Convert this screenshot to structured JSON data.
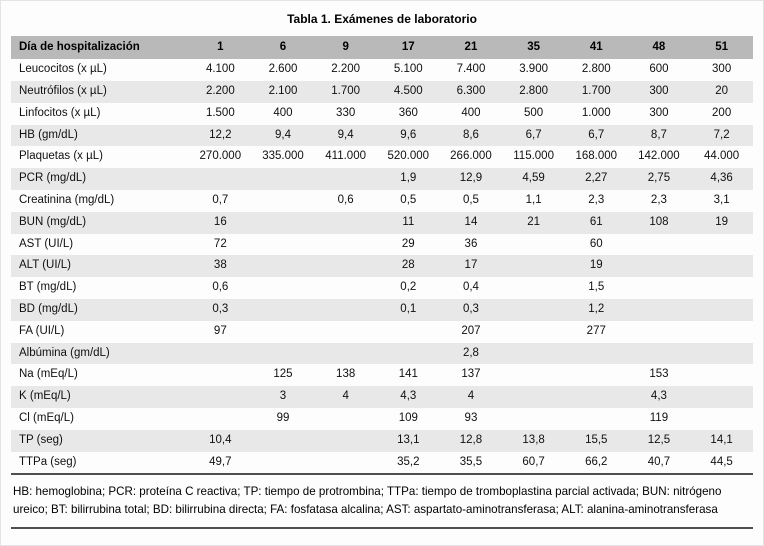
{
  "title": "Tabla 1. Exámenes de laboratorio",
  "table": {
    "header": [
      "Día de hospitalización",
      "1",
      "6",
      "9",
      "17",
      "21",
      "35",
      "41",
      "48",
      "51"
    ],
    "rows": [
      {
        "label": "Leucocitos (x µL)",
        "values": [
          "4.100",
          "2.600",
          "2.200",
          "5.100",
          "7.400",
          "3.900",
          "2.800",
          "600",
          "300"
        ]
      },
      {
        "label": "Neutrófilos (x µL)",
        "values": [
          "2.200",
          "2.100",
          "1.700",
          "4.500",
          "6.300",
          "2.800",
          "1.700",
          "300",
          "20"
        ]
      },
      {
        "label": "Linfocitos (x µL)",
        "values": [
          "1.500",
          "400",
          "330",
          "360",
          "400",
          "500",
          "1.000",
          "300",
          "200"
        ]
      },
      {
        "label": "HB (gm/dL)",
        "values": [
          "12,2",
          "9,4",
          "9,4",
          "9,6",
          "8,6",
          "6,7",
          "6,7",
          "8,7",
          "7,2"
        ]
      },
      {
        "label": "Plaquetas (x µL)",
        "values": [
          "270.000",
          "335.000",
          "411.000",
          "520.000",
          "266.000",
          "115.000",
          "168.000",
          "142.000",
          "44.000"
        ]
      },
      {
        "label": "PCR (mg/dL)",
        "values": [
          "",
          "",
          "",
          "1,9",
          "12,9",
          "4,59",
          "2,27",
          "2,75",
          "4,36"
        ]
      },
      {
        "label": "Creatinina (mg/dL)",
        "values": [
          "0,7",
          "",
          "0,6",
          "0,5",
          "0,5",
          "1,1",
          "2,3",
          "2,3",
          "3,1"
        ]
      },
      {
        "label": "BUN (mg/dL)",
        "values": [
          "16",
          "",
          "",
          "11",
          "14",
          "21",
          "61",
          "108",
          "19"
        ]
      },
      {
        "label": "AST (UI/L)",
        "values": [
          "72",
          "",
          "",
          "29",
          "36",
          "",
          "60",
          "",
          ""
        ]
      },
      {
        "label": "ALT (UI/L)",
        "values": [
          "38",
          "",
          "",
          "28",
          "17",
          "",
          "19",
          "",
          ""
        ]
      },
      {
        "label": "BT (mg/dL)",
        "values": [
          "0,6",
          "",
          "",
          "0,2",
          "0,4",
          "",
          "1,5",
          "",
          ""
        ]
      },
      {
        "label": "BD (mg/dL)",
        "values": [
          "0,3",
          "",
          "",
          "0,1",
          "0,3",
          "",
          "1,2",
          "",
          ""
        ]
      },
      {
        "label": "FA (UI/L)",
        "values": [
          "97",
          "",
          "",
          "",
          "207",
          "",
          "277",
          "",
          ""
        ]
      },
      {
        "label": "Albúmina (gm/dL)",
        "values": [
          "",
          "",
          "",
          "",
          "2,8",
          "",
          "",
          "",
          ""
        ]
      },
      {
        "label": "Na (mEq/L)",
        "values": [
          "",
          "125",
          "138",
          "141",
          "137",
          "",
          "",
          "153",
          ""
        ]
      },
      {
        "label": "K (mEq/L)",
        "values": [
          "",
          "3",
          "4",
          "4,3",
          "4",
          "",
          "",
          "4,3",
          ""
        ]
      },
      {
        "label": "Cl (mEq/L)",
        "values": [
          "",
          "99",
          "",
          "109",
          "93",
          "",
          "",
          "119",
          ""
        ]
      },
      {
        "label": "TP (seg)",
        "values": [
          "10,4",
          "",
          "",
          "13,1",
          "12,8",
          "13,8",
          "15,5",
          "12,5",
          "14,1"
        ]
      },
      {
        "label": "TTPa (seg)",
        "values": [
          "49,7",
          "",
          "",
          "35,2",
          "35,5",
          "60,7",
          "66,2",
          "40,7",
          "44,5"
        ]
      }
    ]
  },
  "footnote": "HB: hemoglobina; PCR: proteína C reactiva; TP: tiempo de protrombina; TTPa: tiempo de tromboplastina parcial activada; BUN: nitrógeno ureico; BT: bilirrubina total; BD: bilirrubina directa; FA: fosfatasa alcalina; AST: aspartato-aminotransferasa; ALT: alanina-aminotransferasa",
  "colors": {
    "header_bg": "#b9b9b9",
    "row_shaded_bg": "#e8e8e8",
    "rule": "#4f4f4f"
  }
}
